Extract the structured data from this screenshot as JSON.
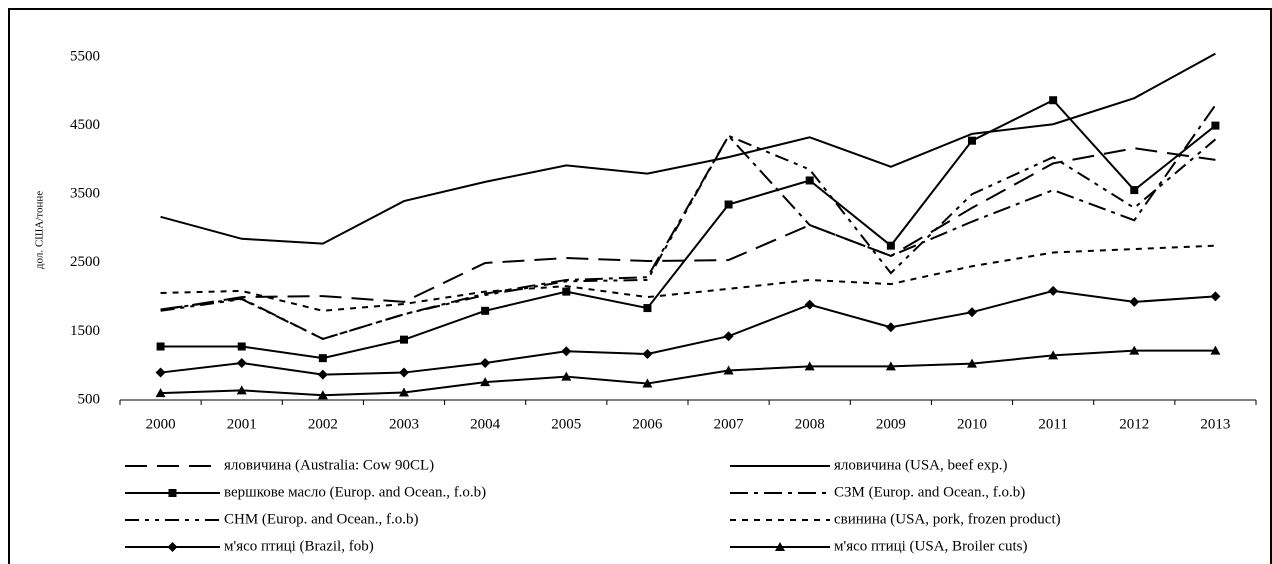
{
  "chart_data": {
    "type": "line",
    "y_label": "дол. США/тонне",
    "categories": [
      "2000",
      "2001",
      "2002",
      "2003",
      "2004",
      "2005",
      "2006",
      "2007",
      "2008",
      "2009",
      "2010",
      "2011",
      "2012",
      "2013"
    ],
    "ylim": [
      500,
      5700
    ],
    "yticks": [
      500,
      1500,
      2500,
      3500,
      4500,
      5500
    ],
    "grid": false,
    "legend": "bottom",
    "series": [
      {
        "name": "яловичина (Australia: Cow 90CL)",
        "color": "#000000",
        "dash": "22 10",
        "marker": "none",
        "values": [
          1812,
          2000,
          2015,
          1930,
          2497,
          2570,
          2526,
          2540,
          3050,
          2600,
          3300,
          3950,
          4170,
          4000
        ]
      },
      {
        "name": "яловичина (USA, beef exp.)",
        "color": "#000000",
        "dash": "none",
        "marker": "none",
        "values": [
          3170,
          2850,
          2780,
          3400,
          3680,
          3920,
          3800,
          4040,
          4330,
          3900,
          4380,
          4520,
          4900,
          5550
        ]
      },
      {
        "name": "вершкове масло (Europ. and Ocean., f.o.b)",
        "color": "#000000",
        "dash": "none",
        "marker": "square",
        "values": [
          1280,
          1280,
          1110,
          1380,
          1800,
          2080,
          1840,
          3350,
          3700,
          2750,
          4280,
          4870,
          3560,
          4500
        ]
      },
      {
        "name": "СЗМ (Europ. and Ocean., f.o.b)",
        "color": "#000000",
        "dash": "18 6 4 6",
        "marker": "none",
        "values": [
          1820,
          1980,
          1390,
          1750,
          2050,
          2250,
          2290,
          4350,
          3050,
          2600,
          3100,
          3560,
          3120,
          4800
        ]
      },
      {
        "name": "СНМ (Europ. and Ocean., f.o.b)",
        "color": "#000000",
        "dash": "14 6 4 6 4 6",
        "marker": "none",
        "values": [
          1800,
          1970,
          1390,
          1750,
          2030,
          2230,
          2250,
          4350,
          3860,
          2350,
          3500,
          4040,
          3300,
          4300
        ]
      },
      {
        "name": "свинина (USA, pork, frozen product)",
        "color": "#000000",
        "dash": "6 6",
        "marker": "none",
        "values": [
          2060,
          2090,
          1800,
          1900,
          2080,
          2160,
          2000,
          2120,
          2250,
          2190,
          2450,
          2650,
          2700,
          2750
        ]
      },
      {
        "name": "м'ясо птиці (Brazil, fob)",
        "color": "#000000",
        "dash": "none",
        "marker": "diamond",
        "values": [
          900,
          1040,
          870,
          900,
          1040,
          1210,
          1170,
          1430,
          1890,
          1560,
          1780,
          2090,
          1930,
          2010
        ]
      },
      {
        "name": "м'ясо птиці (USA, Broiler cuts)",
        "color": "#000000",
        "dash": "none",
        "marker": "triangle",
        "values": [
          600,
          640,
          570,
          610,
          760,
          840,
          740,
          930,
          990,
          990,
          1030,
          1150,
          1220,
          1220
        ]
      }
    ]
  }
}
